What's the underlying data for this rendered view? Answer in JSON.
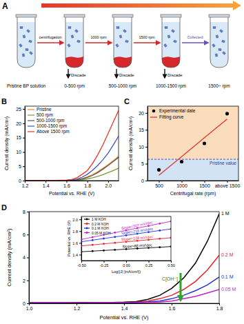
{
  "chart_data": [
    {
      "type": "line",
      "title": "B",
      "xlabel": "Potential vs. RHE (V)",
      "ylabel": "Current density (mA/cm²)",
      "x": [
        1.2,
        1.3,
        1.4,
        1.5,
        1.6,
        1.65,
        1.7,
        1.75,
        1.8,
        1.85,
        1.9,
        1.95,
        2.0,
        2.05,
        2.1
      ],
      "series": [
        {
          "name": "Pristine",
          "color": "#f08a24",
          "values": [
            0,
            0,
            0,
            0,
            0.05,
            0.1,
            0.3,
            0.7,
            1.3,
            2.1,
            3.1,
            4.3,
            5.6,
            7,
            8.5
          ]
        },
        {
          "name": "500 rpm",
          "color": "#7a9a2e",
          "values": [
            0,
            0,
            0,
            0,
            0,
            0.05,
            0.1,
            0.3,
            0.6,
            1,
            1.5,
            2.1,
            2.8,
            3.5,
            4.3
          ]
        },
        {
          "name": "500-1000 rpm",
          "color": "#555555",
          "values": [
            0,
            0,
            0,
            0,
            0.05,
            0.1,
            0.25,
            0.6,
            1.1,
            1.8,
            2.8,
            4,
            5.3,
            6.7,
            8.1
          ]
        },
        {
          "name": "1000-1500 rpm",
          "color": "#3a56c8",
          "values": [
            0,
            0,
            0,
            0.05,
            0.1,
            0.2,
            0.5,
            1.2,
            2.2,
            3.6,
            5.3,
            7.3,
            9.6,
            12.5,
            15.5
          ]
        },
        {
          "name": "Above 1500 rpm",
          "color": "#e8352a",
          "values": [
            0,
            0,
            0.05,
            0.1,
            0.2,
            0.4,
            1,
            2.2,
            3.5,
            6,
            9,
            12.5,
            16.5,
            20.5,
            24.5
          ]
        }
      ],
      "xlim": [
        1.2,
        2.1
      ],
      "xticks": [
        1.2,
        1.4,
        1.6,
        1.8,
        {
          "value": 2,
          "label": "2.0"
        }
      ],
      "ylim": [
        0,
        26
      ],
      "yticks": [
        0,
        5,
        10,
        15,
        20,
        25
      ],
      "legend": "upper left"
    },
    {
      "type": "scatter",
      "title": "C",
      "xlabel": "Centrifugal rate (rpm)",
      "ylabel": "Current density (mA/cm²)",
      "categories": [
        "500",
        "1000",
        "1500",
        "above 1500"
      ],
      "series": [
        {
          "name": "Experimental date",
          "type": "scatter",
          "marker": "circle",
          "color": "#000000",
          "values": [
            3.2,
            5.6,
            11,
            19.8
          ]
        },
        {
          "name": "Fitting curve",
          "type": "line",
          "color": "#e8352a",
          "values": [
            1.6,
            7.1,
            12.7,
            18.2
          ]
        }
      ],
      "ylim": [
        0,
        22
      ],
      "yticks": [
        0,
        5,
        10,
        15,
        20
      ],
      "annotations": [
        {
          "text": "Pristine value",
          "value": 6.3
        }
      ],
      "legend": "upper left"
    },
    {
      "type": "line",
      "title": "D",
      "xlabel": "Potential vs. RHE (V)",
      "ylabel": "Current density (mA/cm²)",
      "x": [
        1.0,
        1.05,
        1.1,
        1.15,
        1.2,
        1.25,
        1.3,
        1.35,
        1.4,
        1.45,
        1.5,
        1.55,
        1.6,
        1.65,
        1.7,
        1.75,
        1.8
      ],
      "series": [
        {
          "name": "1 M",
          "color": "#000000",
          "values": [
            0.05,
            0.05,
            0.05,
            0.05,
            0.06,
            0.06,
            0.07,
            0.08,
            0.1,
            0.15,
            0.35,
            0.7,
            1.3,
            2.2,
            3.5,
            5.4,
            7.8
          ]
        },
        {
          "name": "0.2 M",
          "color": "#e8232a",
          "values": [
            0.05,
            0.05,
            0.05,
            0.05,
            0.05,
            0.05,
            0.06,
            0.06,
            0.07,
            0.1,
            0.2,
            0.4,
            0.7,
            1.2,
            1.9,
            2.9,
            4.2
          ]
        },
        {
          "name": "0.1 M",
          "color": "#2233d6",
          "values": [
            0.04,
            0.04,
            0.04,
            0.04,
            0.04,
            0.05,
            0.05,
            0.05,
            0.06,
            0.08,
            0.12,
            0.2,
            0.4,
            0.7,
            1.1,
            1.6,
            2.3
          ]
        },
        {
          "name": "0.05 M",
          "color": "#c81ec8",
          "values": [
            0.03,
            0.03,
            0.03,
            0.03,
            0.03,
            0.03,
            0.04,
            0.04,
            0.04,
            0.05,
            0.07,
            0.1,
            0.2,
            0.4,
            0.6,
            0.9,
            1.2
          ]
        }
      ],
      "xlim": [
        1.0,
        1.8
      ],
      "xticks": [
        {
          "value": 1,
          "label": "1.0"
        },
        1.2,
        1.4,
        1.6,
        1.8
      ],
      "ylim": [
        0,
        8
      ],
      "yticks": [
        0,
        2,
        4,
        6,
        8
      ],
      "annotations": [
        {
          "text": "C[OH⁻]"
        }
      ]
    },
    {
      "type": "line",
      "xlabel": "Log(|J| [mA/cm²])",
      "ylabel": "Potential vs. RHE (V)",
      "x": [
        -0.5,
        -0.375,
        -0.25,
        -0.125,
        0,
        0.125,
        0.25,
        0.375,
        0.5
      ],
      "series": [
        {
          "name": "1 M KOH",
          "color": "#000000",
          "marker": "circle",
          "slope_label": "Slope=88 mV/dec",
          "values": [
            1.45,
            1.461,
            1.472,
            1.483,
            1.494,
            1.505,
            1.516,
            1.527,
            1.538
          ]
        },
        {
          "name": "0.2 M KOH",
          "color": "#e8232a",
          "marker": "circle",
          "slope_label": "Slope=138 mV/dec",
          "values": [
            1.55,
            1.567,
            1.585,
            1.602,
            1.619,
            1.636,
            1.654,
            1.671,
            1.688
          ]
        },
        {
          "name": "0.1 M KOH",
          "color": "#2233d6",
          "marker": "circle",
          "slope_label": "Slope=218 mV/dec",
          "values": [
            1.62,
            1.647,
            1.675,
            1.702,
            1.729,
            1.756,
            1.784,
            1.811,
            1.838
          ]
        },
        {
          "name": "0.05 M KOH",
          "color": "#c81ec8",
          "marker": "circle",
          "slope_label": "Slope=307 mV/dec",
          "values": [
            1.66,
            1.698,
            1.737,
            1.775,
            1.814,
            1.852,
            1.89,
            1.929,
            1.967
          ]
        }
      ],
      "xlim": [
        -0.5,
        0.5
      ],
      "xticks": [
        {
          "value": -0.5,
          "label": "-0.50"
        },
        {
          "value": -0.25,
          "label": "-0.25"
        },
        {
          "value": 0,
          "label": "0.00"
        },
        {
          "value": 0.25,
          "label": "0.25"
        },
        {
          "value": 0.5,
          "label": "0.50"
        }
      ],
      "ylim": [
        1.3,
        2.05
      ],
      "yticks": [
        1.4,
        1.6,
        1.8,
        {
          "value": 2,
          "label": "2.0"
        }
      ],
      "legend": "upper left"
    }
  ],
  "diagram": {
    "title": "A",
    "tubes": [
      {
        "label": "Pristine BP solution",
        "sediment": false
      },
      {
        "label": "0-500 rpm",
        "sediment": true,
        "note": "Discade"
      },
      {
        "label": "500-1000 rpm",
        "sediment": true,
        "note": "Discade"
      },
      {
        "label": "1000-1500 rpm",
        "sediment": true,
        "note": "Discade"
      },
      {
        "label": "1500~ rpm",
        "sediment": false
      }
    ],
    "arrows": [
      "centrifugation",
      "1000 rpm",
      "1500 rpm",
      "Collected"
    ]
  }
}
